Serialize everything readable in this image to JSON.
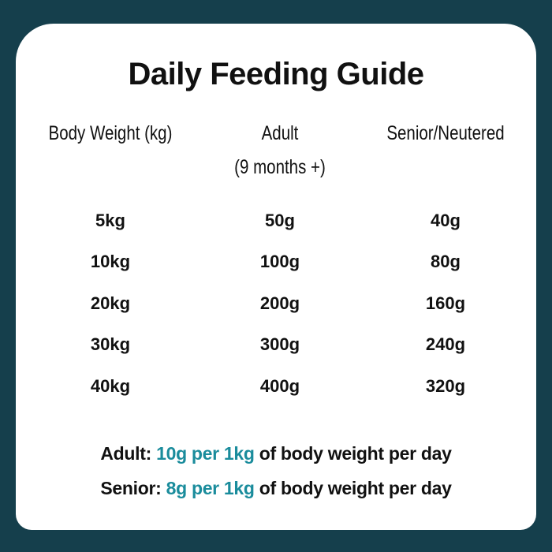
{
  "title": "Daily Feeding Guide",
  "columns": [
    {
      "label": "Body Weight (kg)",
      "sub": ""
    },
    {
      "label": "Adult",
      "sub": "(9 months +)"
    },
    {
      "label": "Senior/Neutered",
      "sub": ""
    }
  ],
  "rows": [
    [
      "5kg",
      "50g",
      "40g"
    ],
    [
      "10kg",
      "100g",
      "80g"
    ],
    [
      "20kg",
      "200g",
      "160g"
    ],
    [
      "30kg",
      "300g",
      "240g"
    ],
    [
      "40kg",
      "400g",
      "320g"
    ]
  ],
  "footer": [
    {
      "label": "Adult:",
      "rate": "10g per 1kg",
      "rest": "of body weight per day"
    },
    {
      "label": "Senior:",
      "rate": "8g per 1kg",
      "rest": "of body weight per day"
    }
  ],
  "colors": {
    "background": "#153f4c",
    "accent": "#1a8c9c",
    "card": "#ffffff"
  }
}
